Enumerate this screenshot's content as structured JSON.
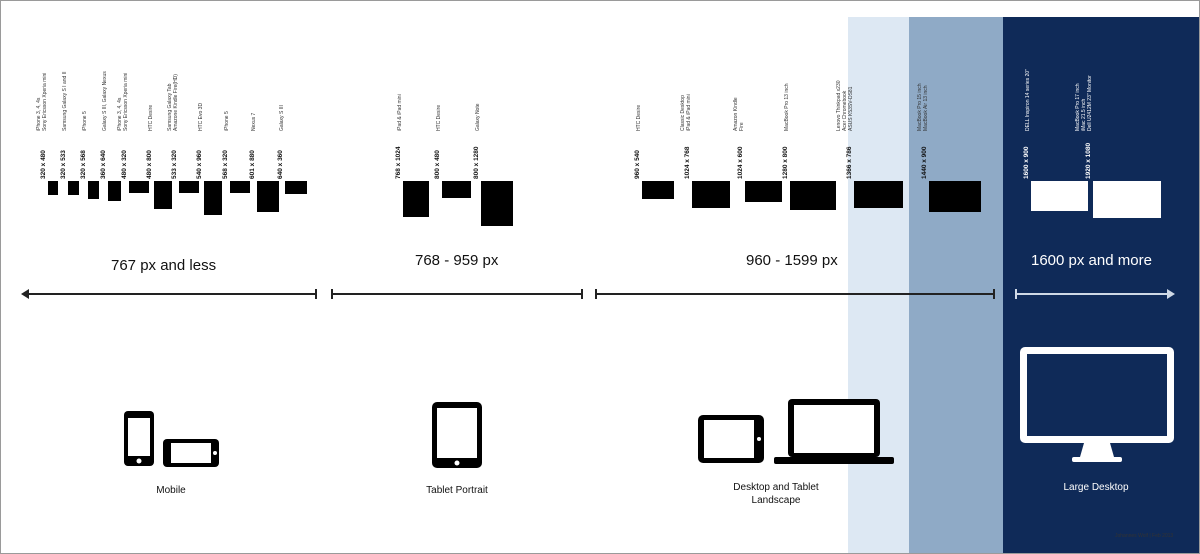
{
  "ranges": [
    {
      "label": "767 px and less"
    },
    {
      "label": "768 - 959 px"
    },
    {
      "label": "960 - 1599 px"
    },
    {
      "label": "1600 px and more"
    }
  ],
  "categories": [
    {
      "label": "Mobile"
    },
    {
      "label": "Tablet Portrait"
    },
    {
      "label": "Desktop and Tablet Landscape"
    },
    {
      "label": "Large Desktop"
    }
  ],
  "devices": [
    {
      "res": "320 x 480",
      "names": [
        "iPhone 3, 4, 4s",
        "Sony Ericsson Xperia mini"
      ]
    },
    {
      "res": "320 x 533",
      "names": [
        "Samsung Galaxy S I and II"
      ]
    },
    {
      "res": "320 x 568",
      "names": [
        "iPhone 5"
      ]
    },
    {
      "res": "360 x 640",
      "names": [
        "Galaxy S III, Galaxy Nexus"
      ]
    },
    {
      "res": "480 x 320",
      "names": [
        "iPhone 3, 4, 4s",
        "Sony Ericsson Xperia mini"
      ]
    },
    {
      "res": "480 x 800",
      "names": [
        "HTC Desire"
      ]
    },
    {
      "res": "533 x 320",
      "names": [
        "Samsung Galaxy Tab",
        "Amazone Kindle Fire(HD)"
      ]
    },
    {
      "res": "540 x 960",
      "names": [
        "HTC Evo 3D"
      ]
    },
    {
      "res": "568 x 320",
      "names": [
        "iPhone 5"
      ]
    },
    {
      "res": "601 x 880",
      "names": [
        "Nexus 7"
      ]
    },
    {
      "res": "640 x 360",
      "names": [
        "Galaxy S III"
      ]
    },
    {
      "res": "768 x 1024",
      "names": [
        "iPad & iPad mini"
      ]
    },
    {
      "res": "800 x 480",
      "names": [
        "HTC Desire"
      ]
    },
    {
      "res": "800 x 1280",
      "names": [
        "Galaxy Note"
      ]
    },
    {
      "res": "960 x 540",
      "names": [
        "HTC Desire"
      ]
    },
    {
      "res": "1024 x 768",
      "names": [
        "Classic Desktop",
        "iPad & iPad mini"
      ]
    },
    {
      "res": "1024 x 600",
      "names": [
        "Amazon Kindle",
        "Fire"
      ]
    },
    {
      "res": "1280 x 800",
      "names": [
        "MacBook Pro 13 inch"
      ]
    },
    {
      "res": "1366 x 786",
      "names": [
        "Lenovo Thinkpad x230",
        "Acer Chromebook",
        "ASUS K53SV-DS81"
      ]
    },
    {
      "res": "1440 x 900",
      "names": [
        "MacBook Pro 15 inch",
        "MacBook Air 13 inch"
      ]
    },
    {
      "res": "1600 x 900",
      "names": [
        "DELL Inspiron 14 series 20\""
      ]
    },
    {
      "res": "1920 x 1080",
      "names": [
        "MacBook Pro 17 inch",
        "iMac 21.5 inch",
        "Dell U2412M 23\" Monitor"
      ]
    }
  ],
  "credit": "Johannes Wolf  |  Feb 2013",
  "colors": {
    "light_band": "#dde8f3",
    "mid_band": "#8faac6",
    "dark_band": "#0f2a58"
  }
}
